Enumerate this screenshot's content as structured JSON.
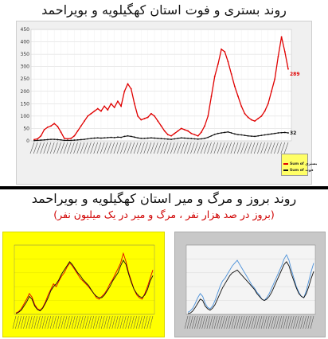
{
  "titles": {
    "top": "روند بستری و فوت استان کهگیلویه و بویراحمد",
    "bottom": "روند بروز و مرگ و میر استان کهگیلویه و بویراحمد",
    "bottom_subtitle": "(بروز در صد هزار نفر ، مرگ و میر در یک میلیون نفر)"
  },
  "colors": {
    "hosp": "#e00000",
    "death": "#111111",
    "top_bg": "#f0f0f0",
    "bl_bg": "#ffff00",
    "br_bg": "#c8c8c8",
    "br_blue": "#4a90d9"
  },
  "chart_data": [
    {
      "type": "line",
      "panel": "top",
      "ylim": [
        0,
        450
      ],
      "yticks": [
        0,
        50,
        100,
        150,
        200,
        250,
        300,
        350,
        400,
        450
      ],
      "grid": true,
      "legend": "bottom-right",
      "series": [
        {
          "name": "Sum of بستری",
          "color": "#e00000",
          "values": [
            5,
            8,
            20,
            45,
            55,
            60,
            70,
            58,
            35,
            10,
            8,
            10,
            20,
            40,
            60,
            80,
            100,
            110,
            120,
            130,
            120,
            140,
            125,
            150,
            135,
            160,
            140,
            200,
            230,
            210,
            150,
            100,
            85,
            90,
            95,
            110,
            100,
            80,
            60,
            40,
            25,
            20,
            30,
            40,
            50,
            45,
            40,
            30,
            25,
            20,
            35,
            60,
            100,
            180,
            260,
            310,
            370,
            360,
            320,
            270,
            220,
            180,
            140,
            110,
            95,
            85,
            80,
            90,
            100,
            120,
            150,
            200,
            250,
            340,
            420,
            360,
            290
          ],
          "end_label": "289"
        },
        {
          "name": "Sum of فوت",
          "color": "#111111",
          "values": [
            1,
            2,
            3,
            4,
            5,
            6,
            6,
            5,
            4,
            2,
            2,
            2,
            3,
            4,
            5,
            6,
            8,
            10,
            11,
            12,
            11,
            12,
            13,
            14,
            13,
            15,
            14,
            18,
            20,
            18,
            15,
            12,
            10,
            10,
            11,
            12,
            11,
            10,
            9,
            8,
            7,
            6,
            8,
            10,
            12,
            11,
            10,
            9,
            8,
            7,
            8,
            10,
            14,
            20,
            26,
            30,
            32,
            34,
            36,
            32,
            28,
            25,
            24,
            22,
            20,
            19,
            18,
            20,
            22,
            24,
            26,
            28,
            30,
            32,
            33,
            34,
            32
          ],
          "end_label": "32"
        }
      ]
    },
    {
      "type": "line",
      "panel": "bottom-left",
      "ylim": [
        0,
        100
      ],
      "series": [
        {
          "color": "#e00000",
          "values": [
            2,
            4,
            8,
            15,
            22,
            30,
            25,
            14,
            8,
            6,
            10,
            18,
            28,
            36,
            44,
            40,
            48,
            55,
            60,
            68,
            74,
            70,
            64,
            58,
            52,
            48,
            44,
            40,
            35,
            30,
            24,
            22,
            26,
            30,
            36,
            44,
            50,
            58,
            66,
            74,
            88,
            76,
            60,
            48,
            36,
            28,
            24,
            22,
            30,
            40,
            52,
            64
          ]
        },
        {
          "color": "#111111",
          "values": [
            1,
            3,
            6,
            12,
            18,
            26,
            22,
            12,
            7,
            5,
            9,
            16,
            24,
            34,
            40,
            44,
            50,
            58,
            64,
            70,
            76,
            72,
            66,
            60,
            56,
            50,
            46,
            42,
            36,
            30,
            26,
            24,
            24,
            28,
            34,
            40,
            48,
            54,
            60,
            70,
            78,
            72,
            58,
            46,
            36,
            30,
            26,
            24,
            28,
            36,
            48,
            56
          ]
        }
      ]
    },
    {
      "type": "line",
      "panel": "bottom-right",
      "ylim": [
        0,
        100
      ],
      "series": [
        {
          "color": "#4a90d9",
          "values": [
            3,
            5,
            9,
            16,
            24,
            30,
            26,
            16,
            10,
            8,
            12,
            20,
            30,
            40,
            48,
            52,
            58,
            64,
            70,
            74,
            78,
            72,
            66,
            60,
            54,
            48,
            42,
            38,
            32,
            28,
            22,
            20,
            24,
            30,
            38,
            46,
            54,
            62,
            70,
            80,
            86,
            78,
            64,
            52,
            40,
            32,
            26,
            24,
            34,
            48,
            62,
            74
          ]
        },
        {
          "color": "#111111",
          "values": [
            1,
            2,
            5,
            10,
            16,
            22,
            20,
            12,
            8,
            6,
            9,
            14,
            22,
            30,
            38,
            44,
            50,
            56,
            60,
            62,
            64,
            60,
            56,
            52,
            48,
            44,
            40,
            36,
            30,
            26,
            22,
            20,
            22,
            26,
            32,
            40,
            48,
            56,
            64,
            72,
            76,
            70,
            58,
            48,
            38,
            30,
            26,
            24,
            30,
            40,
            52,
            62
          ]
        }
      ]
    }
  ]
}
